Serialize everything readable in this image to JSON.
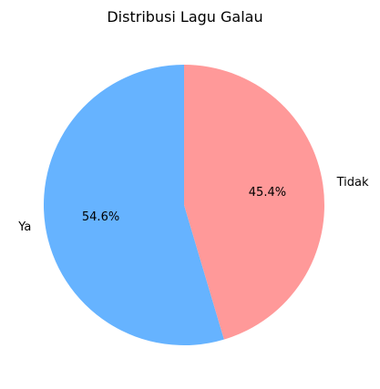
{
  "chart_data": {
    "type": "pie",
    "title": "Distribusi Lagu Galau",
    "categories": [
      "Ya",
      "Tidak"
    ],
    "values": [
      54.6,
      45.4
    ],
    "value_labels": [
      "54.6%",
      "45.4%"
    ],
    "colors": [
      "#66b3ff",
      "#ff9999"
    ],
    "start_angle_deg": 90,
    "direction": "counterclockwise",
    "legend": "none"
  }
}
